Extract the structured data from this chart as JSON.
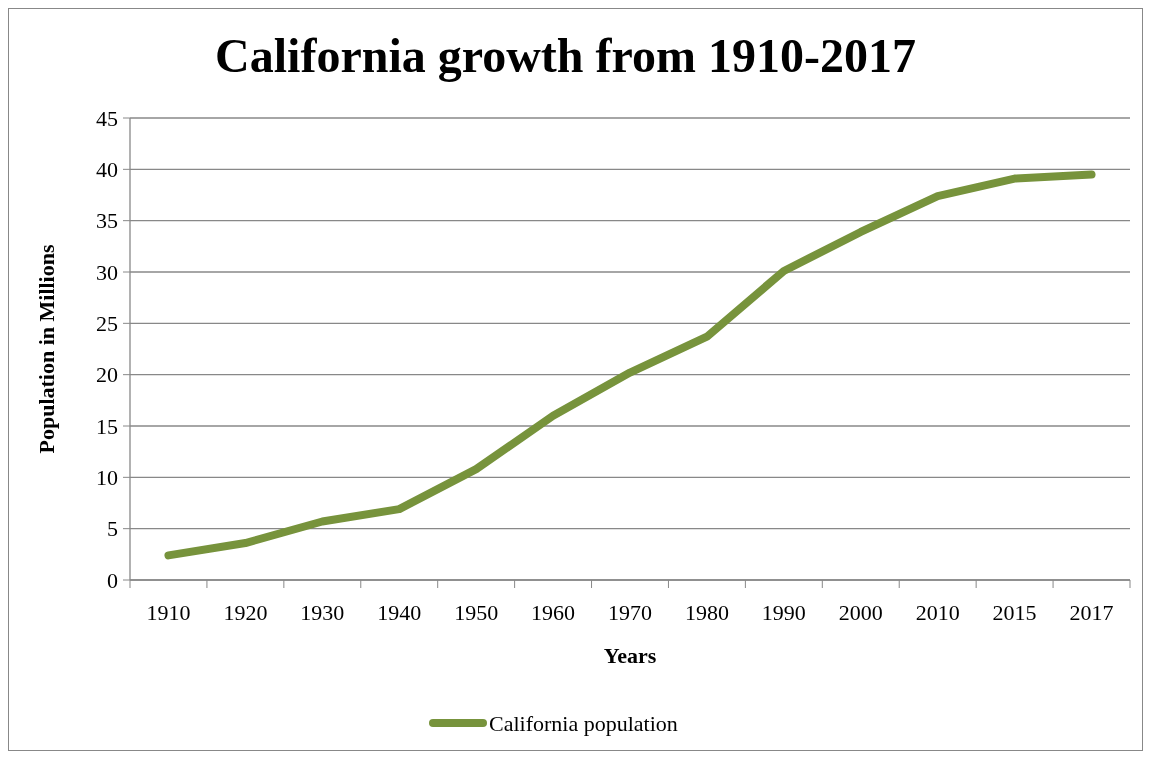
{
  "chart_data": {
    "type": "line",
    "title": "California  growth from 1910-2017",
    "xlabel": "Years",
    "ylabel": "Population in Millions",
    "categories": [
      "1910",
      "1920",
      "1930",
      "1940",
      "1950",
      "1960",
      "1970",
      "1980",
      "1990",
      "2000",
      "2010",
      "2015",
      "2017"
    ],
    "series": [
      {
        "name": "California population",
        "color": "#77933c",
        "values": [
          2.4,
          3.6,
          5.7,
          6.9,
          10.8,
          16.0,
          20.2,
          23.7,
          30.1,
          33.9,
          37.4,
          39.1,
          39.5
        ]
      }
    ],
    "ylim": [
      0,
      45
    ],
    "yticks": [
      0,
      5,
      10,
      15,
      20,
      25,
      30,
      35,
      40,
      45
    ],
    "grid": "y",
    "legend": "bottom",
    "marker": "none",
    "line_style": "solid"
  }
}
